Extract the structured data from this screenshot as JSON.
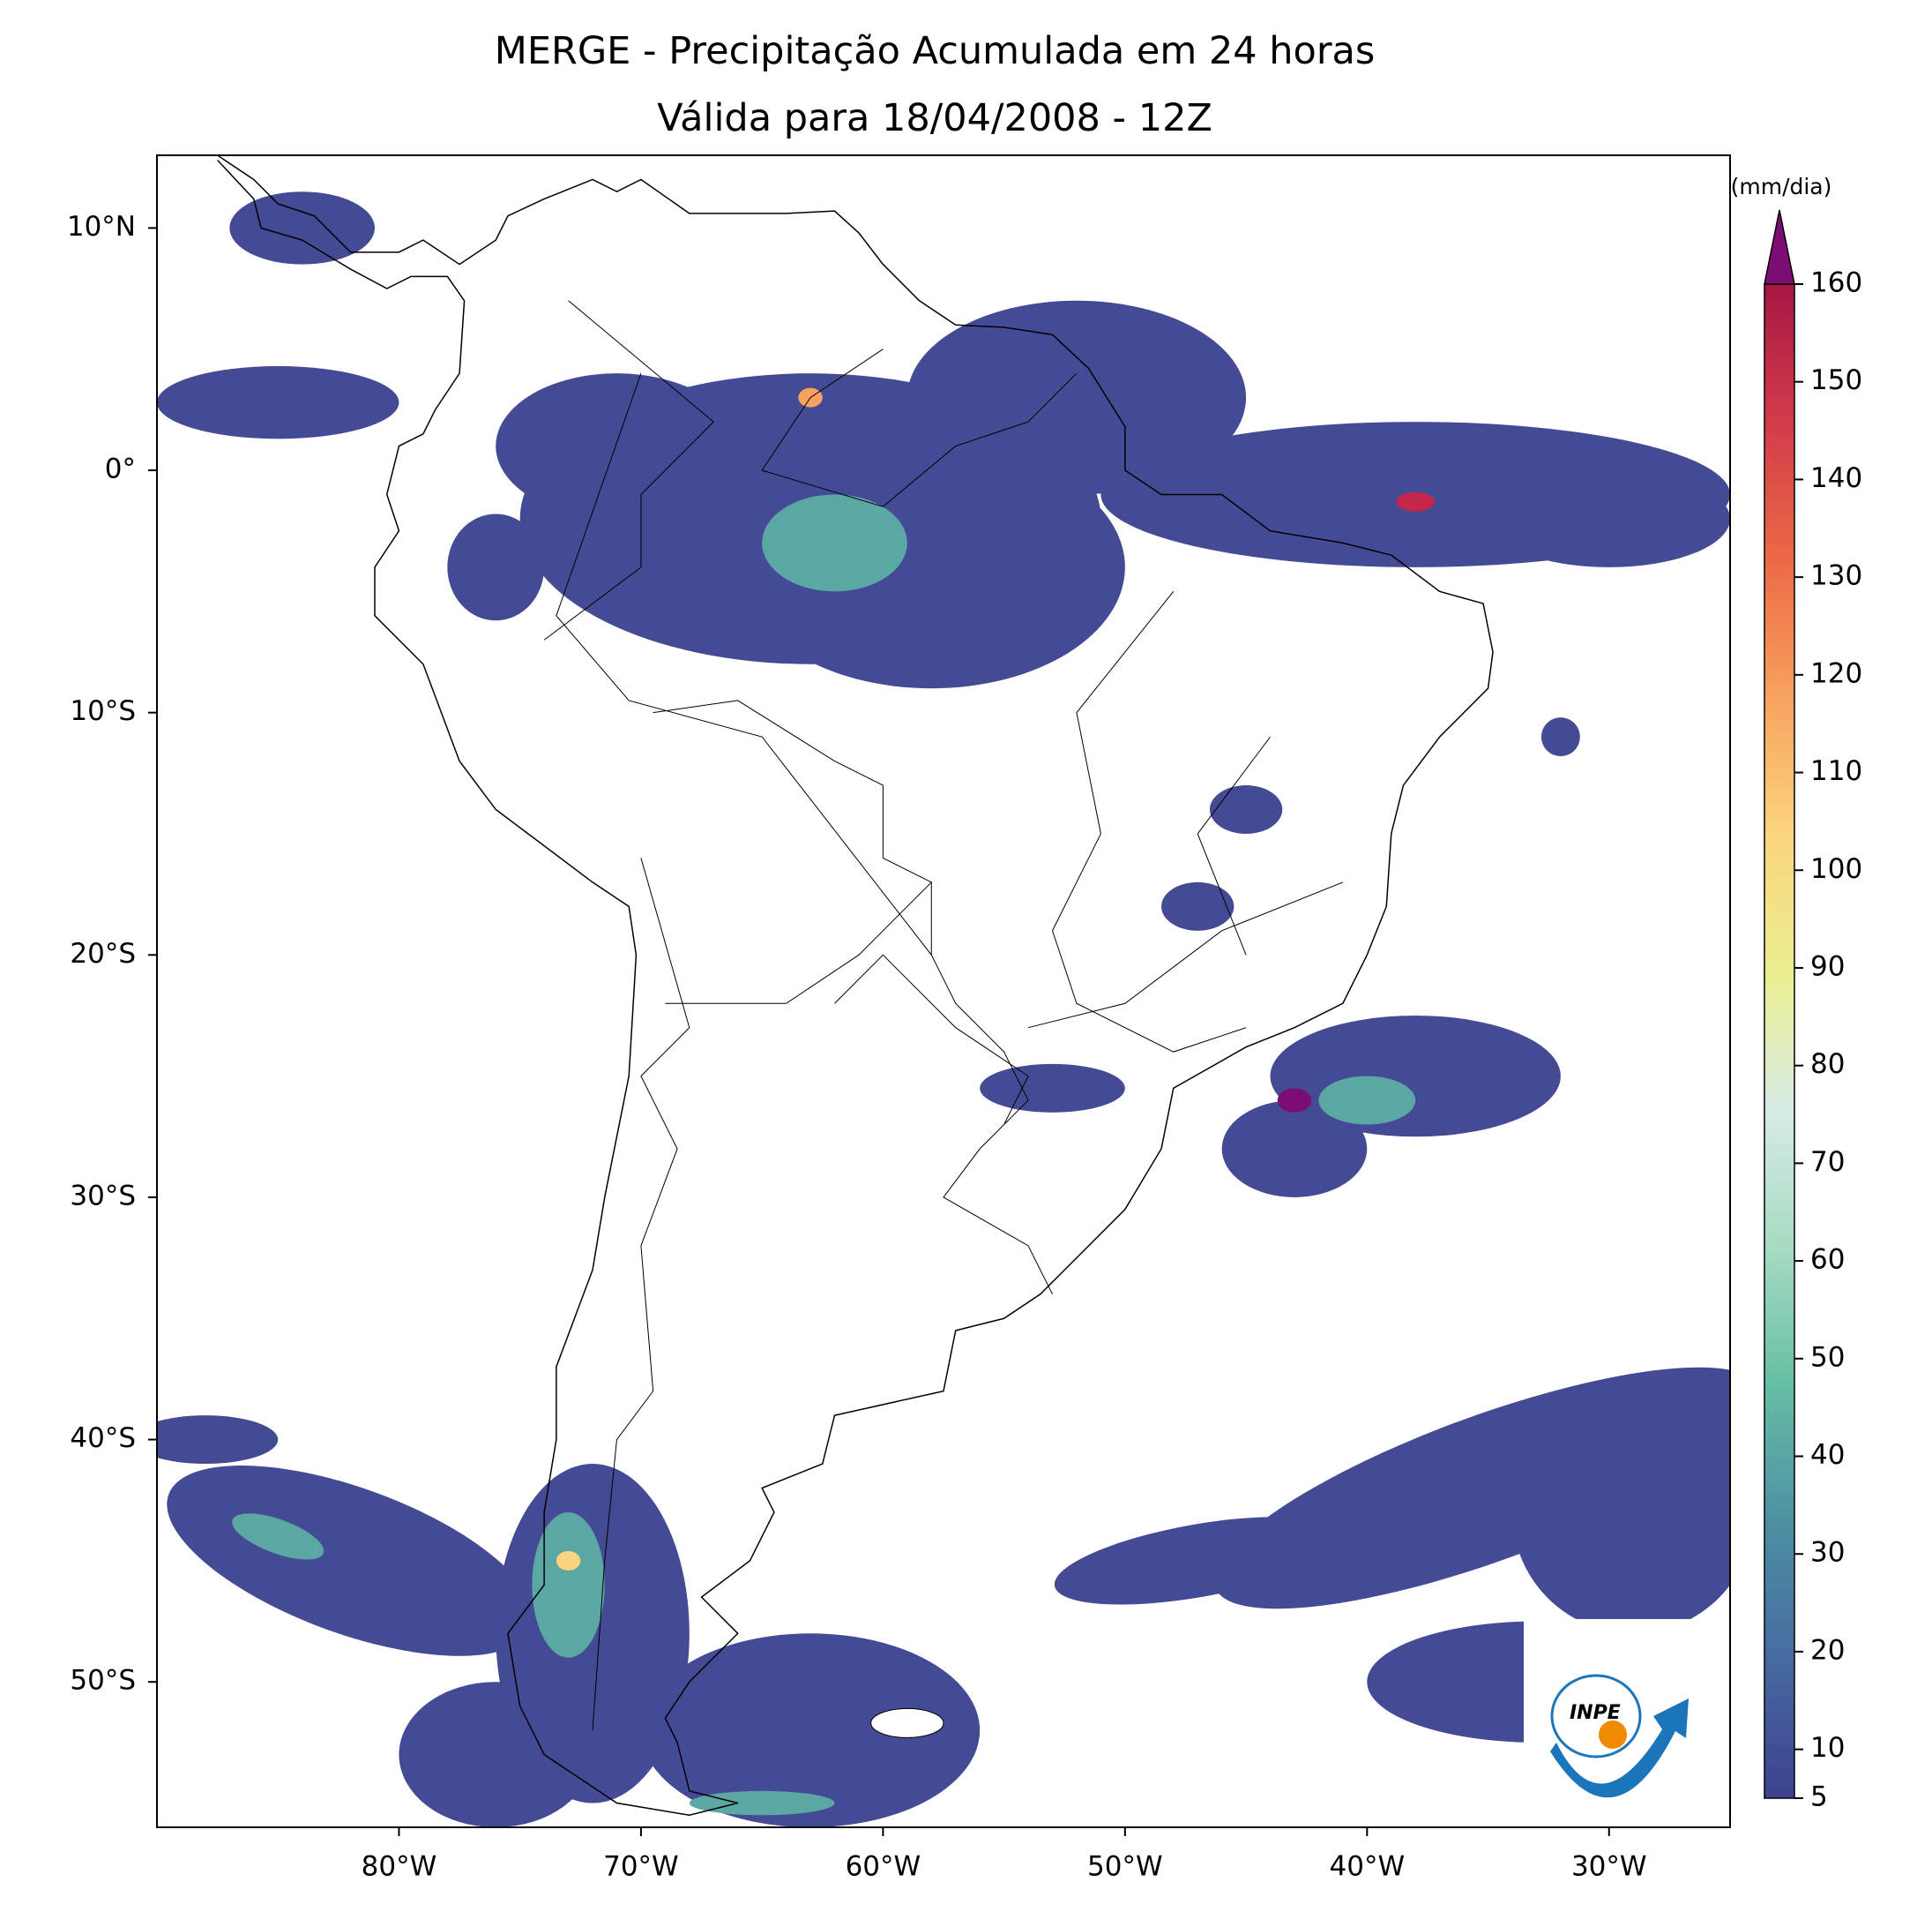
{
  "title": [
    "MERGE - Precipitação Acumulada em 24 horas",
    "Válida para 18/04/2008 - 12Z"
  ],
  "map": {
    "xlim": [
      -90,
      -25
    ],
    "ylim": [
      -56,
      13
    ],
    "xticks": [
      {
        "value": -80,
        "label": "80°W"
      },
      {
        "value": -70,
        "label": "70°W"
      },
      {
        "value": -60,
        "label": "60°W"
      },
      {
        "value": -50,
        "label": "50°W"
      },
      {
        "value": -40,
        "label": "40°W"
      },
      {
        "value": -30,
        "label": "30°W"
      }
    ],
    "yticks": [
      {
        "value": 10,
        "label": "10°N"
      },
      {
        "value": 0,
        "label": "0°"
      },
      {
        "value": -10,
        "label": "10°S"
      },
      {
        "value": -20,
        "label": "20°S"
      },
      {
        "value": -30,
        "label": "30°S"
      },
      {
        "value": -40,
        "label": "40°S"
      },
      {
        "value": -50,
        "label": "50°S"
      }
    ]
  },
  "colorbar": {
    "label": "(mm/dia)",
    "lim": [
      5,
      160
    ],
    "ticks": [
      5,
      10,
      20,
      30,
      40,
      50,
      60,
      70,
      80,
      90,
      100,
      110,
      120,
      130,
      140,
      150,
      160
    ],
    "colors": [
      "#3d418e",
      "#476aa2",
      "#4d8fa2",
      "#66bea5",
      "#a7dbc2",
      "#d7ebe5",
      "#ebee8f",
      "#fbd57e",
      "#f7a25e",
      "#ec6946",
      "#d13c4a",
      "#a81744"
    ],
    "extend_color": "#7b0d74"
  },
  "logo": {
    "text": "INPE"
  }
}
